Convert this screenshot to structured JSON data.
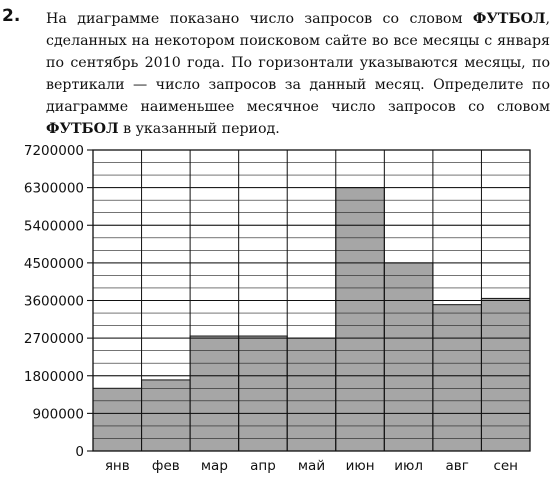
{
  "problem": {
    "number": "2.",
    "part1": "На диаграмме показано число запросов со словом ",
    "keyword1": "ФУТБОЛ",
    "part2": ", сделанных на некотором поисковом сайте во все месяцы с января по сентябрь 2010 года. По горизонтали указываются месяцы, по вертикали — число запросов за данный месяц. Определите по диаграмме наименьшее месячное число запросов со словом ",
    "keyword2": "ФУТБОЛ",
    "part3": " в указанный период."
  },
  "chart_data": {
    "type": "bar",
    "categories": [
      "янв",
      "фев",
      "мар",
      "апр",
      "май",
      "июн",
      "июл",
      "авг",
      "сен"
    ],
    "values": [
      1500000,
      1700000,
      2750000,
      2750000,
      2700000,
      6300000,
      4500000,
      3500000,
      3650000
    ],
    "ylim": [
      0,
      7200000
    ],
    "yticks": [
      0,
      900000,
      1800000,
      2700000,
      3600000,
      4500000,
      5400000,
      6300000,
      7200000
    ],
    "ytick_labels": [
      "0",
      "900000",
      "1800000",
      "2700000",
      "3600000",
      "4500000",
      "5400000",
      "6300000",
      "7200000"
    ],
    "minor_step": 300000,
    "grid": true,
    "bar_color": "#a6a6a6",
    "title": "",
    "xlabel": "",
    "ylabel": ""
  }
}
